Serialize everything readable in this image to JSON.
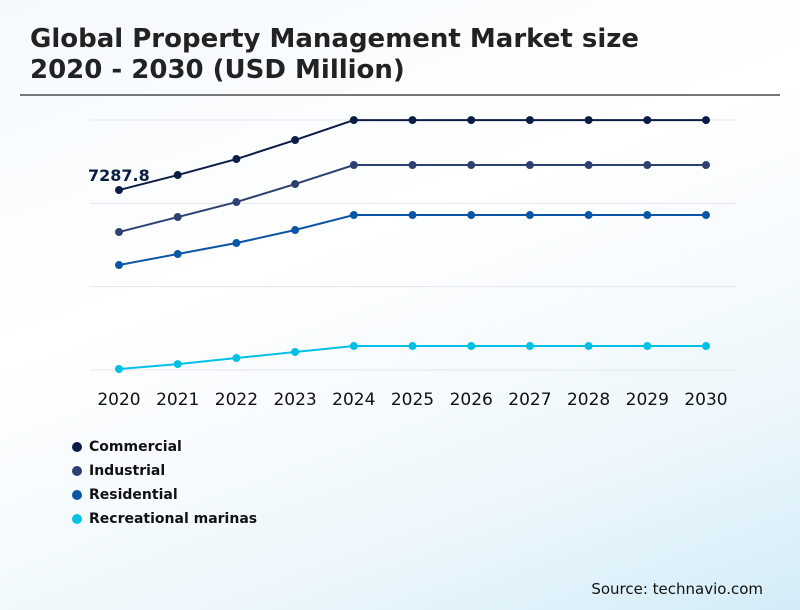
{
  "title_line1": "Global Property Management Market size",
  "title_line2": "2020 - 2030 (USD Million)",
  "source": "Source: technavio.com",
  "chart_data": {
    "type": "line",
    "x": [
      "2020",
      "2021",
      "2022",
      "2023",
      "2024",
      "2025",
      "2026",
      "2027",
      "2028",
      "2029",
      "2030"
    ],
    "ylim": [
      0,
      10125
    ],
    "grid": true,
    "legend_placement": "bottom-left",
    "annotation": "7287.8",
    "series": [
      {
        "name": "Commercial",
        "color": "#0b1d45",
        "values": [
          7287.8,
          7895,
          8543,
          9313,
          10122,
          10122,
          10122,
          10122,
          10122,
          10122,
          10122
        ]
      },
      {
        "name": "Industrial",
        "color": "#2e3f72",
        "values": [
          5588,
          6195,
          6802,
          7531,
          8300,
          8300,
          8300,
          8300,
          8300,
          8300,
          8300
        ]
      },
      {
        "name": "Residential",
        "color": "#0a56a6",
        "values": [
          4251,
          4697,
          5142,
          5669,
          6276,
          6276,
          6276,
          6276,
          6276,
          6276,
          6276
        ]
      },
      {
        "name": "Recreational marinas",
        "color": "#00c1e3",
        "values": [
          40,
          240,
          485,
          730,
          970,
          970,
          970,
          970,
          970,
          970,
          970
        ]
      }
    ]
  }
}
